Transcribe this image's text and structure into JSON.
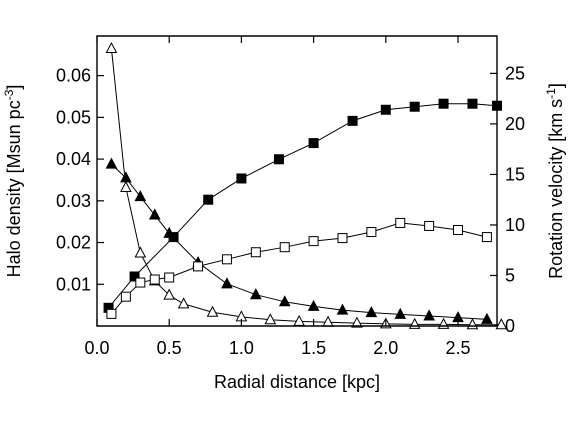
{
  "chart_data": {
    "type": "line",
    "xlabel": "Radial distance [kpc]",
    "ylabel_left": {
      "text": "Halo density [Msun pc",
      "sup": "-3",
      "close": "]"
    },
    "ylabel_right": {
      "text": "Rotation velocity [km s",
      "sup": "-1",
      "close": "]"
    },
    "xlim": [
      0.0,
      2.77
    ],
    "ylim_left": [
      0.0,
      0.0695
    ],
    "ylim_right": [
      0.0,
      28.7
    ],
    "x_ticks": [
      0.0,
      0.5,
      1.0,
      1.5,
      2.0,
      2.5
    ],
    "x_tick_labels": [
      "0.0",
      "0.5",
      "1.0",
      "1.5",
      "2.0",
      "2.5"
    ],
    "y_left_ticks": [
      0.01,
      0.02,
      0.03,
      0.04,
      0.05,
      0.06
    ],
    "y_left_tick_labels": [
      "0.01",
      "0.02",
      "0.03",
      "0.04",
      "0.05",
      "0.06"
    ],
    "y_right_ticks": [
      0,
      5,
      10,
      15,
      20,
      25
    ],
    "y_right_tick_labels": [
      "0",
      "5",
      "10",
      "15",
      "20",
      "25"
    ],
    "series": [
      {
        "axis": "left",
        "marker": "triangle",
        "filled": true,
        "x": [
          0.1,
          0.2,
          0.3,
          0.4,
          0.5,
          0.7,
          0.9,
          1.1,
          1.3,
          1.5,
          1.7,
          1.9,
          2.1,
          2.3,
          2.5,
          2.7
        ],
        "values": [
          0.0388,
          0.0355,
          0.031,
          0.0266,
          0.0222,
          0.0152,
          0.0101,
          0.0075,
          0.0058,
          0.0047,
          0.0038,
          0.0032,
          0.0028,
          0.0024,
          0.002,
          0.0016
        ]
      },
      {
        "axis": "left",
        "marker": "triangle",
        "filled": false,
        "x": [
          0.1,
          0.2,
          0.3,
          0.4,
          0.5,
          0.6,
          0.8,
          1.0,
          1.2,
          1.4,
          1.6,
          1.8,
          2.0,
          2.2,
          2.4,
          2.6,
          2.8
        ],
        "values": [
          0.0665,
          0.0332,
          0.0175,
          0.0108,
          0.0074,
          0.0053,
          0.0033,
          0.0022,
          0.0015,
          0.0011,
          0.0009,
          0.0007,
          0.0005,
          0.0004,
          0.0004,
          0.0003,
          0.0003
        ]
      },
      {
        "axis": "right",
        "marker": "square",
        "filled": true,
        "x": [
          0.08,
          0.26,
          0.53,
          0.77,
          1.0,
          1.26,
          1.5,
          1.77,
          2.0,
          2.2,
          2.4,
          2.6,
          2.77
        ],
        "values": [
          1.8,
          4.9,
          8.8,
          12.5,
          14.6,
          16.5,
          18.1,
          20.3,
          21.4,
          21.7,
          22.0,
          22.0,
          21.8
        ]
      },
      {
        "axis": "right",
        "marker": "square",
        "filled": false,
        "x": [
          0.1,
          0.2,
          0.3,
          0.4,
          0.5,
          0.7,
          0.9,
          1.1,
          1.3,
          1.5,
          1.7,
          1.9,
          2.1,
          2.3,
          2.5,
          2.7
        ],
        "values": [
          1.2,
          2.9,
          4.3,
          4.6,
          4.8,
          5.9,
          6.6,
          7.3,
          7.8,
          8.4,
          8.7,
          9.3,
          10.2,
          9.9,
          9.5,
          8.8
        ]
      }
    ]
  }
}
